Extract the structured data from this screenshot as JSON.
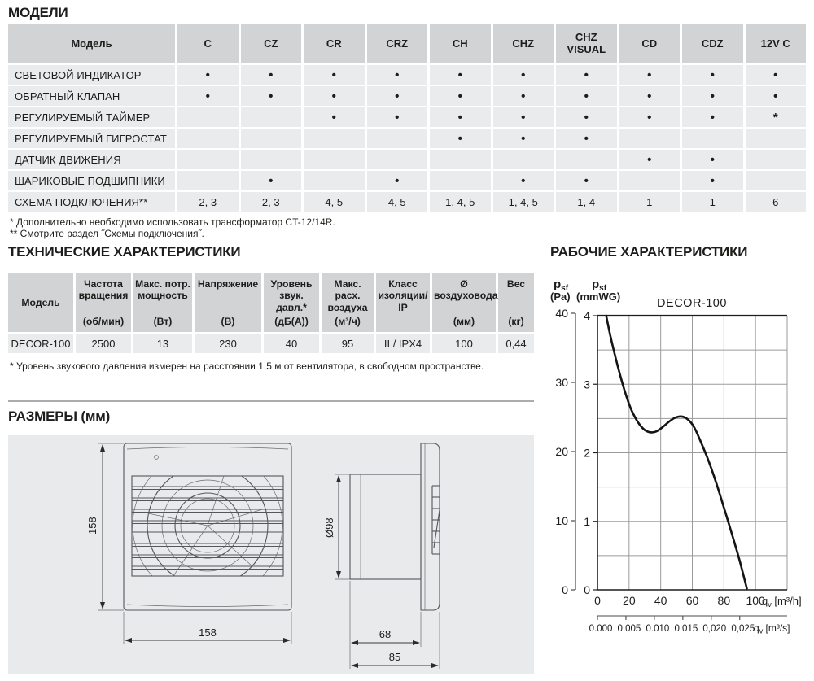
{
  "models": {
    "title": "МОДЕЛИ",
    "table": {
      "first_col_header": "Модель",
      "model_columns": [
        "C",
        "CZ",
        "CR",
        "CRZ",
        "CH",
        "CHZ",
        "CHZ VISUAL",
        "CD",
        "CDZ",
        "12V C"
      ],
      "rows": [
        {
          "feature": "СВЕТОВОЙ ИНДИКАТОР",
          "values": [
            "•",
            "•",
            "•",
            "•",
            "•",
            "•",
            "•",
            "•",
            "•",
            "•"
          ]
        },
        {
          "feature": "ОБРАТНЫЙ КЛАПАН",
          "values": [
            "•",
            "•",
            "•",
            "•",
            "•",
            "•",
            "•",
            "•",
            "•",
            "•"
          ]
        },
        {
          "feature": "РЕГУЛИРУЕМЫЙ ТАЙМЕР",
          "values": [
            "",
            "",
            "•",
            "•",
            "•",
            "•",
            "•",
            "•",
            "•",
            "*"
          ]
        },
        {
          "feature": "РЕГУЛИРУЕМЫЙ ГИГРОСТАТ",
          "values": [
            "",
            "",
            "",
            "",
            "•",
            "•",
            "•",
            "",
            "",
            ""
          ]
        },
        {
          "feature": "ДАТЧИК ДВИЖЕНИЯ",
          "values": [
            "",
            "",
            "",
            "",
            "",
            "",
            "",
            "•",
            "•",
            ""
          ]
        },
        {
          "feature": "ШАРИКОВЫЕ ПОДШИПНИКИ",
          "values": [
            "",
            "•",
            "",
            "•",
            "",
            "•",
            "•",
            "",
            "•",
            ""
          ]
        },
        {
          "feature": "СХЕМА ПОДКЛЮЧЕНИЯ**",
          "values": [
            "2, 3",
            "2, 3",
            "4, 5",
            "4, 5",
            "1, 4, 5",
            "1, 4, 5",
            "1, 4",
            "1",
            "1",
            "6"
          ]
        }
      ]
    },
    "footnotes": [
      "* Дополнительно необходимо использовать трансформатор CT-12/14R.",
      "** Смотрите раздел ˝Схемы подключения˝."
    ]
  },
  "tech": {
    "title": "ТЕХНИЧЕСКИЕ ХАРАКТЕРИСТИКИ",
    "columns": [
      {
        "label": "Модель",
        "unit": ""
      },
      {
        "label": "Частота вращения",
        "unit": "(об/мин)"
      },
      {
        "label": "Макс. потр. мощность",
        "unit": "(Вт)"
      },
      {
        "label": "Напряжение",
        "unit": "(В)"
      },
      {
        "label": "Уровень звук. давл.*",
        "unit": "(дБ(А))"
      },
      {
        "label": "Макс. расх. воздуха",
        "unit": "(м³/ч)"
      },
      {
        "label": "Класс изоляции/ IP",
        "unit": ""
      },
      {
        "label": "Ø воздуховода",
        "unit": "(мм)"
      },
      {
        "label": "Вес",
        "unit": "(кг)"
      }
    ],
    "row": [
      "DECOR-100",
      "2500",
      "13",
      "230",
      "40",
      "95",
      "II / IPX4",
      "100",
      "0,44"
    ],
    "footnote": "* Уровень звукового давления измерен на расстоянии 1,5 м от вентилятора, в свободном пространстве."
  },
  "dimensions": {
    "title": "РАЗМЕРЫ (мм)",
    "labels": {
      "front_height": "158",
      "front_width": "158",
      "duct_diameter": "Ø98",
      "duct_depth": "68",
      "total_depth": "85"
    }
  },
  "performance": {
    "title": "РАБОЧИЕ ХАРАКТЕРИСТИКИ"
  },
  "chart_data": {
    "type": "line",
    "title": "DECOR-100",
    "y_axis_left": {
      "sym": "p",
      "sym_sub": "sf",
      "unit": "(Pa)",
      "ticks": [
        40,
        30,
        20,
        10,
        0
      ],
      "range": [
        0,
        40
      ]
    },
    "y_axis_inner": {
      "sym": "p",
      "sym_sub": "sf",
      "unit": "(mmWG)",
      "ticks": [
        4,
        3,
        2,
        1,
        0
      ],
      "range": [
        0,
        4
      ],
      "grid_step": 0.5
    },
    "x_axis": {
      "sym": "q",
      "sym_sub": "v",
      "unit": " [m³/h]",
      "ticks": [
        0,
        20,
        40,
        60,
        80,
        100
      ],
      "range": [
        0,
        120
      ],
      "grid_step": 20
    },
    "x_axis_secondary": {
      "sym": "q",
      "sym_sub": "v",
      "unit": " [m³/s]",
      "tick_labels": [
        "0.000",
        "0.005",
        "0.010",
        "0,015",
        "0,020",
        "0,025"
      ],
      "tick_positions_m3h": [
        0,
        18,
        36,
        54,
        72,
        90
      ]
    },
    "grid": true,
    "legend": "none",
    "series": [
      {
        "name": "DECOR-100",
        "points_m3h_mmwg": [
          [
            5.5,
            4.0
          ],
          [
            9,
            3.62
          ],
          [
            13,
            3.25
          ],
          [
            17,
            2.92
          ],
          [
            21,
            2.65
          ],
          [
            25,
            2.47
          ],
          [
            29,
            2.35
          ],
          [
            33,
            2.3
          ],
          [
            37,
            2.31
          ],
          [
            41,
            2.37
          ],
          [
            45,
            2.45
          ],
          [
            49,
            2.51
          ],
          [
            53,
            2.53
          ],
          [
            57,
            2.49
          ],
          [
            61,
            2.38
          ],
          [
            65,
            2.18
          ],
          [
            70,
            1.9
          ],
          [
            75,
            1.57
          ],
          [
            80,
            1.2
          ],
          [
            85,
            0.82
          ],
          [
            90,
            0.42
          ],
          [
            94.5,
            0.02
          ]
        ]
      }
    ]
  }
}
